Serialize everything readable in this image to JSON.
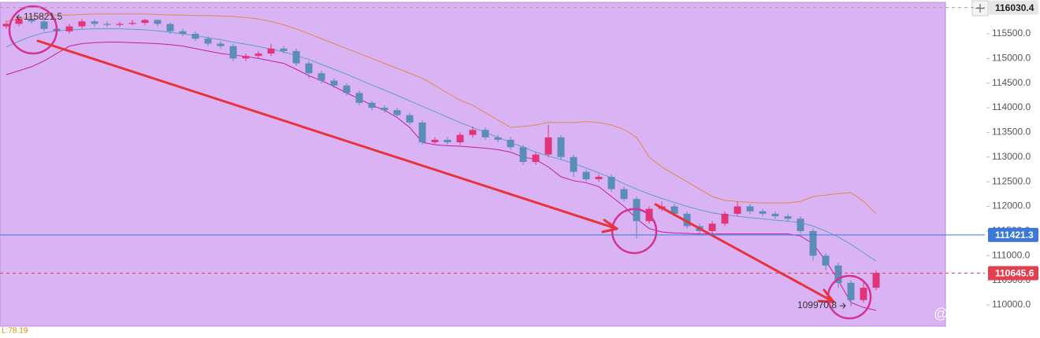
{
  "chart_data": {
    "type": "candlestick",
    "ylim": [
      109570,
      116105
    ],
    "yticks": [
      {
        "value": 110000,
        "label": "110000.0"
      },
      {
        "value": 110500,
        "label": "110500.0"
      },
      {
        "value": 111000,
        "label": "111000.0"
      },
      {
        "value": 111500,
        "label": "111500.0"
      },
      {
        "value": 112000,
        "label": "112000.0"
      },
      {
        "value": 112500,
        "label": "112500.0"
      },
      {
        "value": 113000,
        "label": "113000.0"
      },
      {
        "value": 113500,
        "label": "113500.0"
      },
      {
        "value": 114000,
        "label": "114000.0"
      },
      {
        "value": 114500,
        "label": "114500.0"
      },
      {
        "value": 115000,
        "label": "115000.0"
      },
      {
        "value": 115500,
        "label": "115500.0"
      }
    ],
    "up_color": "#e0357a",
    "down_color": "#5b8db8",
    "background": "#dab3f5",
    "open": {
      "values": [
        115650,
        115700,
        115800,
        115750,
        115600,
        115550,
        115650,
        115750,
        115700,
        115680,
        115700,
        115720,
        115780,
        115700,
        115550,
        115500,
        115400,
        115300,
        115250,
        115000,
        115050,
        115100,
        115200,
        115150,
        114900,
        114700,
        114550,
        114450,
        114300,
        114100,
        114000,
        113950,
        113850,
        113700,
        113300,
        113350,
        113300,
        113450,
        113550,
        113400,
        113350,
        113200,
        112900,
        113050,
        113400,
        113000,
        112700,
        112550,
        112600,
        112350,
        112150,
        111700,
        111950,
        112000,
        111850,
        111600,
        111500,
        111650,
        111850,
        112000,
        111900,
        111850,
        111800,
        111750,
        111500,
        111000,
        110800,
        110450,
        110100,
        110350
      ]
    },
    "high": {
      "values": [
        115760,
        115821.5,
        115810,
        115800,
        115650,
        115700,
        115800,
        115790,
        115750,
        115740,
        115780,
        115800,
        115790,
        115720,
        115600,
        115550,
        115450,
        115350,
        115300,
        115100,
        115150,
        115300,
        115250,
        115200,
        114950,
        114750,
        114600,
        114500,
        114350,
        114150,
        114050,
        114000,
        113900,
        113750,
        113400,
        113400,
        113500,
        113620,
        113600,
        113450,
        113400,
        113250,
        113100,
        113650,
        113450,
        113050,
        112750,
        112650,
        112650,
        112400,
        112200,
        112000,
        112100,
        112050,
        111900,
        111650,
        111700,
        111900,
        112100,
        112050,
        111950,
        111900,
        111850,
        111800,
        111550,
        111050,
        110850,
        110500,
        110450,
        110700
      ]
    },
    "low": {
      "values": [
        115600,
        115650,
        115700,
        115550,
        115500,
        115500,
        115600,
        115650,
        115630,
        115640,
        115670,
        115680,
        115650,
        115500,
        115450,
        115350,
        115250,
        115200,
        114950,
        114950,
        115000,
        115050,
        115100,
        114850,
        114600,
        114500,
        114400,
        114250,
        114050,
        113950,
        113900,
        113800,
        113650,
        113250,
        113250,
        113250,
        113250,
        113400,
        113350,
        113300,
        113150,
        112850,
        112850,
        113000,
        112950,
        112600,
        112500,
        112500,
        112300,
        112100,
        111350,
        111650,
        111900,
        111800,
        111550,
        111450,
        111450,
        111600,
        111800,
        111850,
        111800,
        111750,
        111700,
        111450,
        110900,
        110700,
        110350,
        109970.8,
        110050,
        110300
      ]
    },
    "close": {
      "values": [
        115700,
        115800,
        115750,
        115600,
        115550,
        115650,
        115750,
        115700,
        115680,
        115700,
        115720,
        115780,
        115700,
        115550,
        115500,
        115400,
        115300,
        115250,
        115000,
        115050,
        115100,
        115200,
        115150,
        114900,
        114700,
        114550,
        114450,
        114300,
        114100,
        114000,
        113950,
        113850,
        113700,
        113300,
        113350,
        113300,
        113450,
        113550,
        113400,
        113350,
        113200,
        112900,
        113050,
        113400,
        113000,
        112700,
        112550,
        112600,
        112350,
        112150,
        111700,
        111950,
        112000,
        111850,
        111600,
        111500,
        111650,
        111850,
        112000,
        111900,
        111850,
        111800,
        111750,
        111500,
        111000,
        110800,
        110450,
        110100,
        110350,
        110650
      ]
    },
    "bands": [
      {
        "color": "#e0894a",
        "values": [
          115750,
          115800,
          115850,
          115870,
          115880,
          115880,
          115890,
          115900,
          115900,
          115900,
          115900,
          115900,
          115890,
          115880,
          115880,
          115870,
          115870,
          115860,
          115850,
          115830,
          115800,
          115750,
          115680,
          115600,
          115500,
          115400,
          115300,
          115200,
          115100,
          115000,
          114900,
          114800,
          114700,
          114600,
          114450,
          114300,
          114150,
          114050,
          113900,
          113750,
          113600,
          113620,
          113650,
          113700,
          113700,
          113700,
          113720,
          113700,
          113650,
          113560,
          113400,
          113000,
          112800,
          112650,
          112500,
          112350,
          112200,
          112120,
          112100,
          112080,
          112070,
          112070,
          112070,
          112100,
          112200,
          112230,
          112260,
          112280,
          112100,
          111850
        ]
      },
      {
        "color": "#5aa0c8",
        "values": [
          115230,
          115350,
          115450,
          115520,
          115560,
          115580,
          115590,
          115600,
          115600,
          115600,
          115590,
          115580,
          115560,
          115530,
          115500,
          115460,
          115420,
          115380,
          115330,
          115290,
          115240,
          115190,
          115130,
          115060,
          114980,
          114880,
          114780,
          114680,
          114570,
          114460,
          114360,
          114250,
          114140,
          114030,
          113920,
          113810,
          113700,
          113600,
          113500,
          113400,
          113300,
          113200,
          113100,
          113020,
          112950,
          112870,
          112780,
          112680,
          112580,
          112460,
          112350,
          112250,
          112160,
          112080,
          112000,
          111930,
          111870,
          111830,
          111800,
          111770,
          111750,
          111720,
          111700,
          111670,
          111600,
          111500,
          111380,
          111230,
          111060,
          110890
        ]
      },
      {
        "color": "#c020a0",
        "values": [
          114670,
          114750,
          114830,
          114950,
          115100,
          115250,
          115300,
          115320,
          115330,
          115330,
          115320,
          115310,
          115300,
          115280,
          115250,
          115200,
          115150,
          115100,
          115070,
          115040,
          115000,
          114950,
          114900,
          114780,
          114650,
          114550,
          114430,
          114300,
          114180,
          114050,
          113950,
          113800,
          113600,
          113300,
          113250,
          113230,
          113220,
          113200,
          113180,
          113150,
          113100,
          113000,
          112950,
          112800,
          112600,
          112520,
          112480,
          112400,
          112200,
          112000,
          111750,
          111550,
          111480,
          111460,
          111450,
          111440,
          111440,
          111440,
          111440,
          111440,
          111440,
          111440,
          111440,
          111400,
          111240,
          110900,
          110500,
          110050,
          109950,
          109890
        ]
      }
    ],
    "price_lines": [
      {
        "value": 116030.4,
        "color": "#9e9e9e",
        "label_bg": "#e6e6e6",
        "label_color": "#222222",
        "style": "dashed"
      },
      {
        "value": 111421.3,
        "color": "#3c78d8",
        "label_bg": "#3c78d8",
        "label_color": "#ffffff",
        "style": "solid"
      },
      {
        "value": 110645.6,
        "color": "#e04050",
        "label_bg": "#e04050",
        "label_color": "#ffffff",
        "style": "dashed"
      }
    ],
    "indicator_label": "L:78.19",
    "watermark": "@ 阿亿All in"
  }
}
